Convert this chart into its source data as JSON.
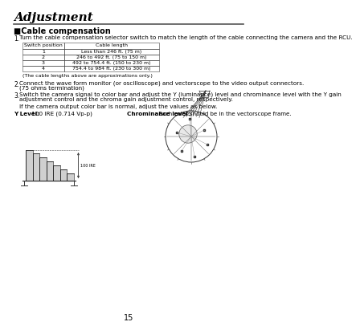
{
  "title": "Adjustment",
  "section": "■Cable compensation",
  "bg_color": "#ffffff",
  "text_color": "#000000",
  "page_number": "15",
  "step1_text": "Turn the cable compensation selector switch to match the length of the cable connecting the camera and the RCU.",
  "table_headers": [
    "Switch position",
    "Cable length"
  ],
  "table_rows": [
    [
      "1",
      "Less than 246 ft. (75 m)"
    ],
    [
      "2",
      "246 to 492 ft. (75 to 150 m)"
    ],
    [
      "3",
      "492 to 754.4 ft. (150 to 230 m)"
    ],
    [
      "4",
      "754.4 to 984 ft. (230 to 300 m)"
    ]
  ],
  "table_note": "(The cable lengths above are approximations only.)",
  "step2_text": "Connect the wave form monitor (or oscilloscope) and vectorscope to the video output connectors.\n(75 ohms termination)",
  "step3_line1": "Switch the camera signal to color bar and adjust the Y (luminance) level and chrominance level with the Y gain",
  "step3_line2": "adjustment control and the chroma gain adjustment control, respectively.",
  "normal_text": "If the camera output color bar is normal, adjust the values as below.",
  "y_level_label": "Y Level:",
  "y_level_value": " 100 IRE (0.714 Vp-p)",
  "chroma_label": "Chrominance level:",
  "chroma_value": " Each color should be in the vectorscope frame."
}
